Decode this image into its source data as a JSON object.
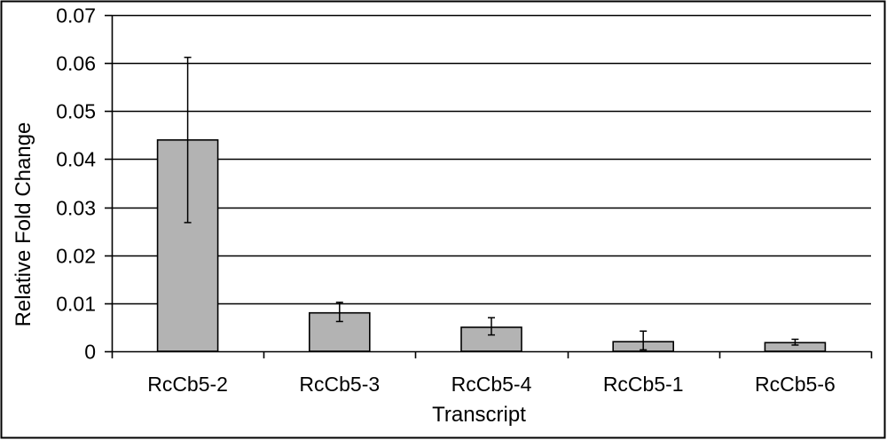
{
  "chart_data": {
    "type": "bar",
    "title": "",
    "xlabel": "Transcript",
    "ylabel": "Relative Fold Change",
    "categories": [
      "RcCb5-2",
      "RcCb5-3",
      "RcCb5-4",
      "RcCb5-1",
      "RcCb5-6"
    ],
    "values": [
      0.044,
      0.008,
      0.005,
      0.002,
      0.0018
    ],
    "error_low": [
      0.0268,
      0.0062,
      0.0034,
      0.0003,
      0.0013
    ],
    "error_high": [
      0.0612,
      0.0102,
      0.007,
      0.0042,
      0.0025
    ],
    "ylim": [
      0,
      0.07
    ],
    "yticks": [
      "0",
      "0.01",
      "0.02",
      "0.03",
      "0.04",
      "0.05",
      "0.06",
      "0.07"
    ],
    "ytick_values": [
      0,
      0.01,
      0.02,
      0.03,
      0.04,
      0.05,
      0.06,
      0.07
    ],
    "grid": true,
    "legend": "none",
    "colors": {
      "bar_fill": "#b3b3b3",
      "bar_stroke": "#000000",
      "grid": "#000000"
    }
  }
}
